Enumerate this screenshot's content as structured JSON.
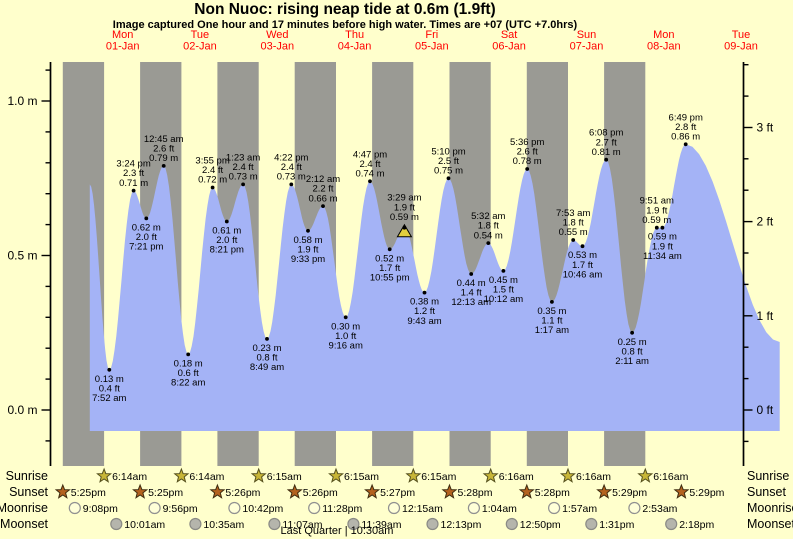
{
  "header": {
    "title": "Non Nuoc: rising  neap tide at 0.6m (1.9ft)",
    "subtitle": "Image captured One hour and 17 minutes before high water. Times are +07 (UTC +7.0hrs)"
  },
  "chart_data": {
    "type": "area",
    "title": "Non Nuoc: rising  neap tide at 0.6m (1.9ft)",
    "subtitle": "Image captured One hour and 17 minutes before high water. Times are +07 (UTC +7.0hrs)",
    "x_axis_days": [
      {
        "weekday": "Mon",
        "date": "01-Jan"
      },
      {
        "weekday": "Tue",
        "date": "02-Jan"
      },
      {
        "weekday": "Wed",
        "date": "03-Jan"
      },
      {
        "weekday": "Thu",
        "date": "04-Jan"
      },
      {
        "weekday": "Fri",
        "date": "05-Jan"
      },
      {
        "weekday": "Sat",
        "date": "06-Jan"
      },
      {
        "weekday": "Sun",
        "date": "07-Jan"
      },
      {
        "weekday": "Mon",
        "date": "08-Jan"
      },
      {
        "weekday": "Tue",
        "date": "09-Jan"
      }
    ],
    "y_axis_left": {
      "unit": "m",
      "tick_labels": [
        "0.0 m",
        "0.5 m",
        "1.0 m"
      ],
      "range_m": [
        -0.17,
        1.12
      ]
    },
    "y_axis_right": {
      "unit": "ft",
      "tick_labels": [
        "0 ft",
        "1 ft",
        "2 ft",
        "3 ft"
      ]
    },
    "tide_events": [
      {
        "type": "low",
        "day": 0,
        "time": "7:52 am",
        "ft": "0.4",
        "m": "0.13"
      },
      {
        "type": "high",
        "day": 0,
        "time": "3:24 pm",
        "ft": "2.3",
        "m": "0.71"
      },
      {
        "type": "low",
        "day": 0,
        "time": "7:21 pm",
        "ft": "2.0",
        "m": "0.62"
      },
      {
        "type": "high",
        "day": 1,
        "time": "12:45 am",
        "ft": "2.6",
        "m": "0.79"
      },
      {
        "type": "low",
        "day": 1,
        "time": "8:22 am",
        "ft": "0.6",
        "m": "0.18"
      },
      {
        "type": "high",
        "day": 1,
        "time": "3:55 pm",
        "ft": "2.4",
        "m": "0.72"
      },
      {
        "type": "low",
        "day": 1,
        "time": "8:21 pm",
        "ft": "2.0",
        "m": "0.61"
      },
      {
        "type": "high",
        "day": 2,
        "time": "1:23 am",
        "ft": "2.4",
        "m": "0.73"
      },
      {
        "type": "low",
        "day": 2,
        "time": "8:49 am",
        "ft": "0.8",
        "m": "0.23"
      },
      {
        "type": "high",
        "day": 2,
        "time": "4:22 pm",
        "ft": "2.4",
        "m": "0.73"
      },
      {
        "type": "low",
        "day": 2,
        "time": "9:33 pm",
        "ft": "1.9",
        "m": "0.58"
      },
      {
        "type": "high",
        "day": 3,
        "time": "2:12 am",
        "ft": "2.2",
        "m": "0.66"
      },
      {
        "type": "low",
        "day": 3,
        "time": "9:16 am",
        "ft": "1.0",
        "m": "0.30"
      },
      {
        "type": "high",
        "day": 3,
        "time": "4:47 pm",
        "ft": "2.4",
        "m": "0.74"
      },
      {
        "type": "low",
        "day": 3,
        "time": "10:55 pm",
        "ft": "1.7",
        "m": "0.52"
      },
      {
        "type": "high",
        "day": 4,
        "time": "3:29 am",
        "ft": "1.9",
        "m": "0.59",
        "current": true
      },
      {
        "type": "low",
        "day": 4,
        "time": "9:43 am",
        "ft": "1.2",
        "m": "0.38"
      },
      {
        "type": "high",
        "day": 4,
        "time": "5:10 pm",
        "ft": "2.5",
        "m": "0.75"
      },
      {
        "type": "low",
        "day": 5,
        "time": "12:13 am",
        "ft": "1.4",
        "m": "0.44"
      },
      {
        "type": "high",
        "day": 5,
        "time": "5:32 am",
        "ft": "1.8",
        "m": "0.54"
      },
      {
        "type": "low",
        "day": 5,
        "time": "10:12 am",
        "ft": "1.5",
        "m": "0.45"
      },
      {
        "type": "high",
        "day": 5,
        "time": "5:36 pm",
        "ft": "2.6",
        "m": "0.78"
      },
      {
        "type": "low",
        "day": 6,
        "time": "1:17 am",
        "ft": "1.1",
        "m": "0.35"
      },
      {
        "type": "high",
        "day": 6,
        "time": "7:53 am",
        "ft": "1.8",
        "m": "0.55"
      },
      {
        "type": "low",
        "day": 6,
        "time": "10:46 am",
        "ft": "1.7",
        "m": "0.53"
      },
      {
        "type": "high",
        "day": 6,
        "time": "6:08 pm",
        "ft": "2.7",
        "m": "0.81"
      },
      {
        "type": "low",
        "day": 7,
        "time": "2:11 am",
        "ft": "0.8",
        "m": "0.25"
      },
      {
        "type": "high",
        "day": 7,
        "time": "9:51 am",
        "ft": "1.9",
        "m": "0.59"
      },
      {
        "type": "low",
        "day": 7,
        "time": "11:34 am",
        "ft": "1.9",
        "m": "0.59"
      },
      {
        "type": "high",
        "day": 7,
        "time": "6:49 pm",
        "ft": "2.8",
        "m": "0.86"
      }
    ],
    "curve_start": {
      "day": 0,
      "hour": 1.8,
      "m": 0.73
    },
    "curve_end": {
      "day": 8,
      "hour": 24,
      "m": 0.22
    },
    "astro": {
      "row_labels": [
        "Sunrise",
        "Sunset",
        "Moonrise",
        "Moonset"
      ],
      "sunrise": [
        {
          "day": 0,
          "time": "6:14am"
        },
        {
          "day": 1,
          "time": "6:14am"
        },
        {
          "day": 2,
          "time": "6:15am"
        },
        {
          "day": 3,
          "time": "6:15am"
        },
        {
          "day": 4,
          "time": "6:15am"
        },
        {
          "day": 5,
          "time": "6:16am"
        },
        {
          "day": 6,
          "time": "6:16am"
        },
        {
          "day": 7,
          "time": "6:16am"
        }
      ],
      "sunset": [
        {
          "day": -1,
          "time": "5:25pm"
        },
        {
          "day": 0,
          "time": "5:25pm"
        },
        {
          "day": 1,
          "time": "5:26pm"
        },
        {
          "day": 2,
          "time": "5:26pm"
        },
        {
          "day": 3,
          "time": "5:27pm"
        },
        {
          "day": 4,
          "time": "5:28pm"
        },
        {
          "day": 5,
          "time": "5:28pm"
        },
        {
          "day": 6,
          "time": "5:29pm"
        },
        {
          "day": 7,
          "time": "5:29pm"
        }
      ],
      "moonrise": [
        {
          "day": -1,
          "time": "9:08pm"
        },
        {
          "day": 0,
          "time": "9:56pm"
        },
        {
          "day": 1,
          "time": "10:42pm"
        },
        {
          "day": 2,
          "time": "11:28pm"
        },
        {
          "day": 4,
          "time": "12:15am"
        },
        {
          "day": 5,
          "time": "1:04am"
        },
        {
          "day": 6,
          "time": "1:57am"
        },
        {
          "day": 7,
          "time": "2:53am"
        }
      ],
      "moonset": [
        {
          "day": 0,
          "time": "10:01am"
        },
        {
          "day": 1,
          "time": "10:35am"
        },
        {
          "day": 2,
          "time": "11:07am"
        },
        {
          "day": 3,
          "time": "11:39am"
        },
        {
          "day": 4,
          "time": "12:13pm"
        },
        {
          "day": 5,
          "time": "12:50pm"
        },
        {
          "day": 6,
          "time": "1:31pm"
        },
        {
          "day": 7,
          "time": "2:18pm"
        }
      ],
      "moon_phase": "Last Quarter | 10:30am"
    },
    "colors": {
      "background": "#ffffcc",
      "night_band": "#9a9a94",
      "day_band": "#ffffcc",
      "tide_fill": "#a4b3f6",
      "date_red": "#ff0000",
      "marker_yellow": "#e2ce3e",
      "sunrise_star": "#c8b637",
      "sunset_star": "#b4621f",
      "moonrise_circle": "#ffffd8",
      "moonset_circle": "#b5b5ac"
    }
  }
}
